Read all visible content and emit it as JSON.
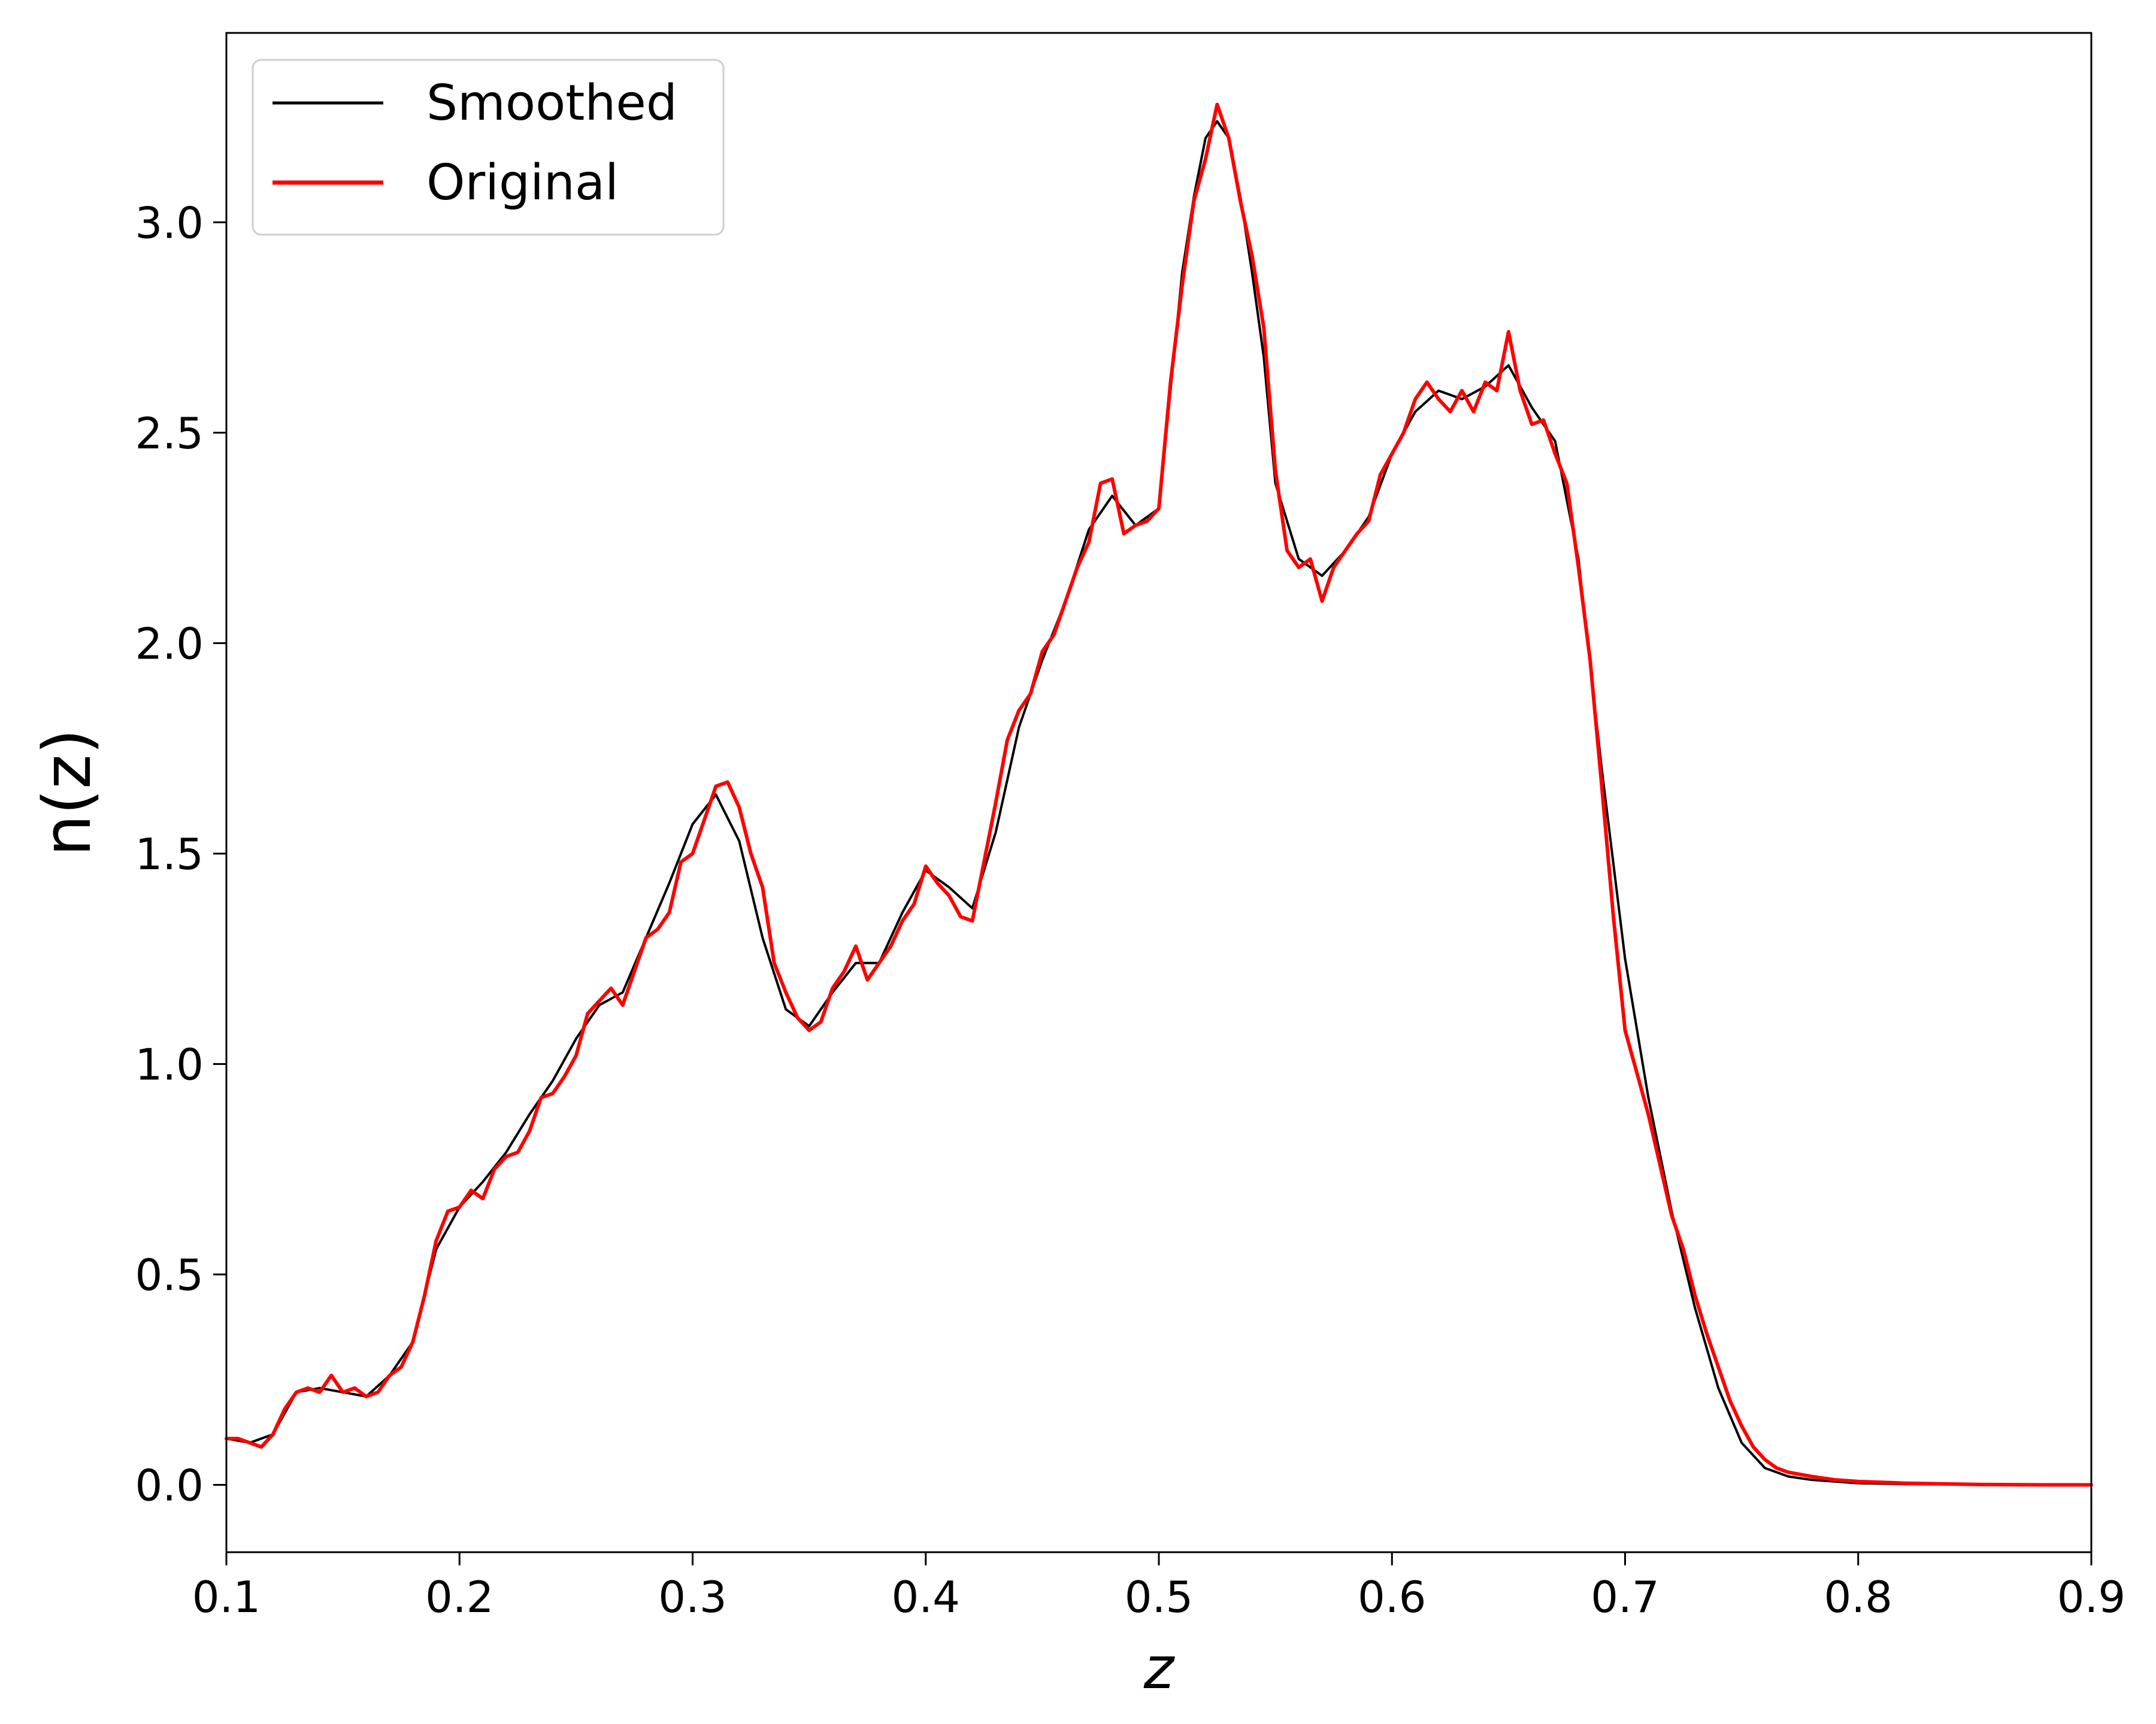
{
  "chart_data": {
    "type": "line",
    "title": "",
    "xlabel": "z",
    "ylabel": "n(z)",
    "xlim": [
      0.1,
      0.9
    ],
    "ylim": [
      -0.16,
      3.45
    ],
    "xticks": [
      0.1,
      0.2,
      0.3,
      0.4,
      0.5,
      0.6,
      0.7,
      0.8,
      0.9
    ],
    "yticks": [
      0.0,
      0.5,
      1.0,
      1.5,
      2.0,
      2.5,
      3.0
    ],
    "xtick_labels": [
      "0.1",
      "0.2",
      "0.3",
      "0.4",
      "0.5",
      "0.6",
      "0.7",
      "0.8",
      "0.9"
    ],
    "ytick_labels": [
      "0.0",
      "0.5",
      "1.0",
      "1.5",
      "2.0",
      "2.5",
      "3.0"
    ],
    "grid": false,
    "legend": {
      "position": "top-left"
    },
    "series": [
      {
        "name": "Smoothed",
        "color": "#000000",
        "x": [
          0.1,
          0.11,
          0.12,
          0.13,
          0.14,
          0.15,
          0.16,
          0.17,
          0.18,
          0.19,
          0.2,
          0.21,
          0.22,
          0.23,
          0.24,
          0.25,
          0.26,
          0.27,
          0.28,
          0.29,
          0.3,
          0.31,
          0.32,
          0.33,
          0.34,
          0.35,
          0.36,
          0.37,
          0.38,
          0.39,
          0.4,
          0.41,
          0.42,
          0.43,
          0.44,
          0.45,
          0.46,
          0.47,
          0.48,
          0.49,
          0.5,
          0.505,
          0.51,
          0.515,
          0.52,
          0.525,
          0.53,
          0.535,
          0.54,
          0.545,
          0.55,
          0.56,
          0.57,
          0.58,
          0.59,
          0.6,
          0.61,
          0.62,
          0.63,
          0.64,
          0.65,
          0.66,
          0.67,
          0.68,
          0.69,
          0.7,
          0.71,
          0.72,
          0.73,
          0.74,
          0.75,
          0.76,
          0.77,
          0.78,
          0.79,
          0.8,
          0.82,
          0.85,
          0.88,
          0.9
        ],
        "y": [
          0.11,
          0.1,
          0.12,
          0.22,
          0.23,
          0.22,
          0.21,
          0.26,
          0.34,
          0.56,
          0.66,
          0.72,
          0.79,
          0.88,
          0.96,
          1.06,
          1.14,
          1.17,
          1.3,
          1.43,
          1.57,
          1.64,
          1.53,
          1.3,
          1.13,
          1.09,
          1.17,
          1.24,
          1.24,
          1.36,
          1.46,
          1.42,
          1.37,
          1.55,
          1.8,
          1.96,
          2.1,
          2.27,
          2.35,
          2.28,
          2.32,
          2.6,
          2.88,
          3.06,
          3.2,
          3.24,
          3.2,
          3.06,
          2.88,
          2.68,
          2.38,
          2.2,
          2.16,
          2.22,
          2.3,
          2.45,
          2.55,
          2.6,
          2.58,
          2.61,
          2.66,
          2.56,
          2.48,
          2.2,
          1.7,
          1.25,
          0.92,
          0.65,
          0.42,
          0.23,
          0.1,
          0.04,
          0.02,
          0.012,
          0.008,
          0.004,
          0.002,
          0.001,
          0.0,
          0.0
        ]
      },
      {
        "name": "Original",
        "color": "#ff0000",
        "x": [
          0.1,
          0.105,
          0.11,
          0.115,
          0.12,
          0.125,
          0.13,
          0.135,
          0.14,
          0.145,
          0.15,
          0.155,
          0.16,
          0.165,
          0.17,
          0.175,
          0.18,
          0.185,
          0.19,
          0.195,
          0.2,
          0.205,
          0.21,
          0.215,
          0.22,
          0.225,
          0.23,
          0.235,
          0.24,
          0.245,
          0.25,
          0.255,
          0.26,
          0.265,
          0.27,
          0.275,
          0.28,
          0.285,
          0.29,
          0.295,
          0.3,
          0.305,
          0.31,
          0.315,
          0.32,
          0.325,
          0.33,
          0.335,
          0.34,
          0.345,
          0.35,
          0.355,
          0.36,
          0.365,
          0.37,
          0.375,
          0.38,
          0.385,
          0.39,
          0.395,
          0.4,
          0.405,
          0.41,
          0.415,
          0.42,
          0.425,
          0.43,
          0.435,
          0.44,
          0.445,
          0.45,
          0.455,
          0.46,
          0.465,
          0.47,
          0.475,
          0.48,
          0.485,
          0.49,
          0.495,
          0.5,
          0.505,
          0.51,
          0.515,
          0.52,
          0.525,
          0.53,
          0.535,
          0.54,
          0.545,
          0.55,
          0.555,
          0.56,
          0.565,
          0.57,
          0.575,
          0.58,
          0.585,
          0.59,
          0.595,
          0.6,
          0.605,
          0.61,
          0.615,
          0.62,
          0.625,
          0.63,
          0.635,
          0.64,
          0.645,
          0.65,
          0.655,
          0.66,
          0.665,
          0.67,
          0.675,
          0.68,
          0.685,
          0.69,
          0.695,
          0.7,
          0.705,
          0.71,
          0.715,
          0.72,
          0.725,
          0.73,
          0.735,
          0.74,
          0.745,
          0.75,
          0.755,
          0.76,
          0.765,
          0.77,
          0.78,
          0.79,
          0.8,
          0.82,
          0.85,
          0.88,
          0.9
        ],
        "y": [
          0.11,
          0.11,
          0.1,
          0.09,
          0.12,
          0.18,
          0.22,
          0.23,
          0.22,
          0.26,
          0.22,
          0.23,
          0.21,
          0.22,
          0.26,
          0.28,
          0.34,
          0.45,
          0.58,
          0.65,
          0.66,
          0.7,
          0.68,
          0.75,
          0.78,
          0.79,
          0.84,
          0.92,
          0.93,
          0.97,
          1.02,
          1.12,
          1.15,
          1.18,
          1.14,
          1.22,
          1.3,
          1.32,
          1.36,
          1.48,
          1.5,
          1.58,
          1.66,
          1.67,
          1.61,
          1.5,
          1.42,
          1.24,
          1.17,
          1.11,
          1.08,
          1.1,
          1.18,
          1.22,
          1.28,
          1.2,
          1.24,
          1.28,
          1.34,
          1.38,
          1.47,
          1.43,
          1.4,
          1.35,
          1.34,
          1.48,
          1.62,
          1.77,
          1.84,
          1.88,
          1.98,
          2.02,
          2.1,
          2.18,
          2.24,
          2.38,
          2.39,
          2.26,
          2.28,
          2.29,
          2.32,
          2.62,
          2.85,
          3.05,
          3.15,
          3.28,
          3.2,
          3.05,
          2.92,
          2.75,
          2.41,
          2.22,
          2.18,
          2.2,
          2.1,
          2.18,
          2.22,
          2.26,
          2.29,
          2.4,
          2.45,
          2.5,
          2.58,
          2.62,
          2.58,
          2.55,
          2.6,
          2.55,
          2.62,
          2.6,
          2.74,
          2.6,
          2.52,
          2.53,
          2.45,
          2.38,
          2.18,
          1.96,
          1.66,
          1.35,
          1.08,
          0.98,
          0.88,
          0.76,
          0.64,
          0.56,
          0.45,
          0.36,
          0.28,
          0.2,
          0.14,
          0.09,
          0.06,
          0.04,
          0.03,
          0.02,
          0.012,
          0.008,
          0.004,
          0.001,
          0.0,
          0.0
        ]
      }
    ]
  }
}
